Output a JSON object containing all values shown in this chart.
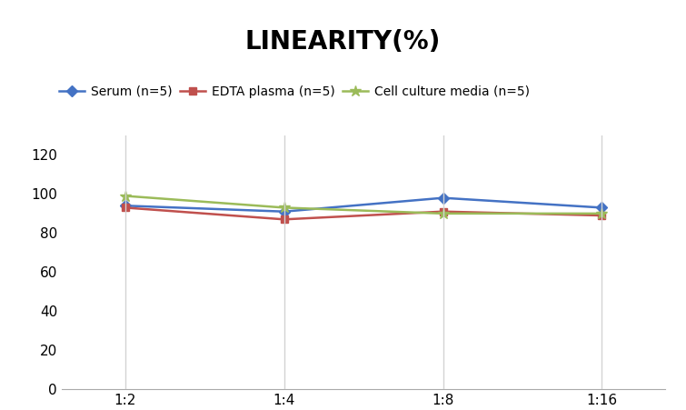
{
  "title": "LINEARITY(%)",
  "title_fontsize": 20,
  "title_fontweight": "bold",
  "x_labels": [
    "1:2",
    "1:4",
    "1:8",
    "1:16"
  ],
  "x_positions": [
    0,
    1,
    2,
    3
  ],
  "series": [
    {
      "label": "Serum (n=5)",
      "values": [
        94,
        91,
        98,
        93
      ],
      "color": "#4472C4",
      "marker": "D",
      "markersize": 6,
      "linewidth": 1.8
    },
    {
      "label": "EDTA plasma (n=5)",
      "values": [
        93,
        87,
        91,
        89
      ],
      "color": "#C0504D",
      "marker": "s",
      "markersize": 6,
      "linewidth": 1.8
    },
    {
      "label": "Cell culture media (n=5)",
      "values": [
        99,
        93,
        90,
        90
      ],
      "color": "#9BBB59",
      "marker": "*",
      "markersize": 9,
      "linewidth": 1.8
    }
  ],
  "ylim": [
    0,
    130
  ],
  "yticks": [
    0,
    20,
    40,
    60,
    80,
    100,
    120
  ],
  "grid_color": "#D3D3D3",
  "background_color": "#FFFFFF",
  "legend_fontsize": 10,
  "axis_fontsize": 11
}
